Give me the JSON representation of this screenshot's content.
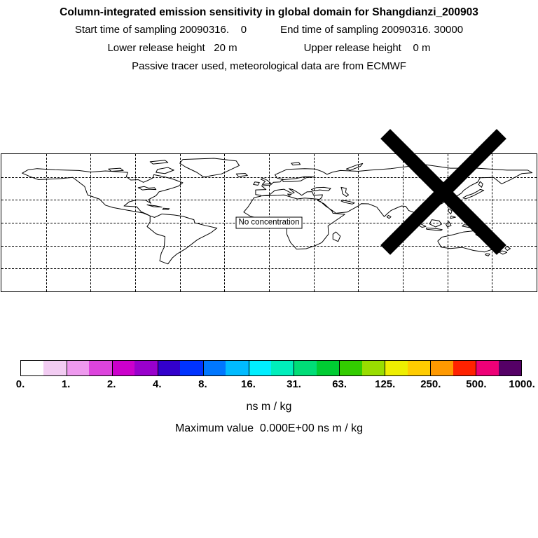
{
  "header": {
    "title": "Column-integrated emission sensitivity in global domain for Shangdianzi_200903",
    "line2_left": "Start time of sampling 20090316.    0",
    "line2_right": "End time of sampling 20090316. 30000",
    "line3_left": "Lower release height   20 m",
    "line3_right": "Upper release height    0 m",
    "line4": "Passive tracer used, meteorological data are from ECMWF"
  },
  "map": {
    "no_concentration_label": "No concentration",
    "station_marker": {
      "name": "Shangdianzi",
      "lon": 117.1,
      "lat": 40.65
    },
    "graticule_spacing_deg": 30
  },
  "chart_data": {
    "type": "heatmap",
    "title": "Column-integrated emission sensitivity in global domain for Shangdianzi_200903",
    "map_extent": {
      "lon_min": -180,
      "lon_max": 180,
      "lat_min": -90,
      "lat_max": 90
    },
    "grid": "dashed graticule every 30 degrees, on",
    "field": "emission sensitivity",
    "values_plotted": "none — field is zero everywhere (No concentration)",
    "annotation": "No concentration",
    "station": {
      "name": "Shangdianzi",
      "lon": 117.1,
      "lat": 40.65
    },
    "colorbar": {
      "tick_labels": [
        "0.",
        "1.",
        "2.",
        "4.",
        "8.",
        "16.",
        "31.",
        "63.",
        "125.",
        "250.",
        "500.",
        "1000."
      ],
      "scale": "logarithmic levels",
      "units": "ns m / kg",
      "legend_position": "bottom",
      "colors": [
        "#ffffff",
        "#f2ccf2",
        "#ee99ee",
        "#dd44dd",
        "#cc00cc",
        "#9900cc",
        "#3300cc",
        "#0033ff",
        "#0077ff",
        "#00bbff",
        "#00eeff",
        "#00eebb",
        "#00dd77",
        "#00cc33",
        "#33cc00",
        "#99dd00",
        "#eeee00",
        "#ffcc00",
        "#ff9900",
        "#ff2200",
        "#ee0077",
        "#550066"
      ]
    },
    "maximum_value": "0.000E+00"
  },
  "footer": {
    "units_label": "ns m / kg",
    "max_label": "Maximum value  0.000E+00 ns m / kg"
  }
}
